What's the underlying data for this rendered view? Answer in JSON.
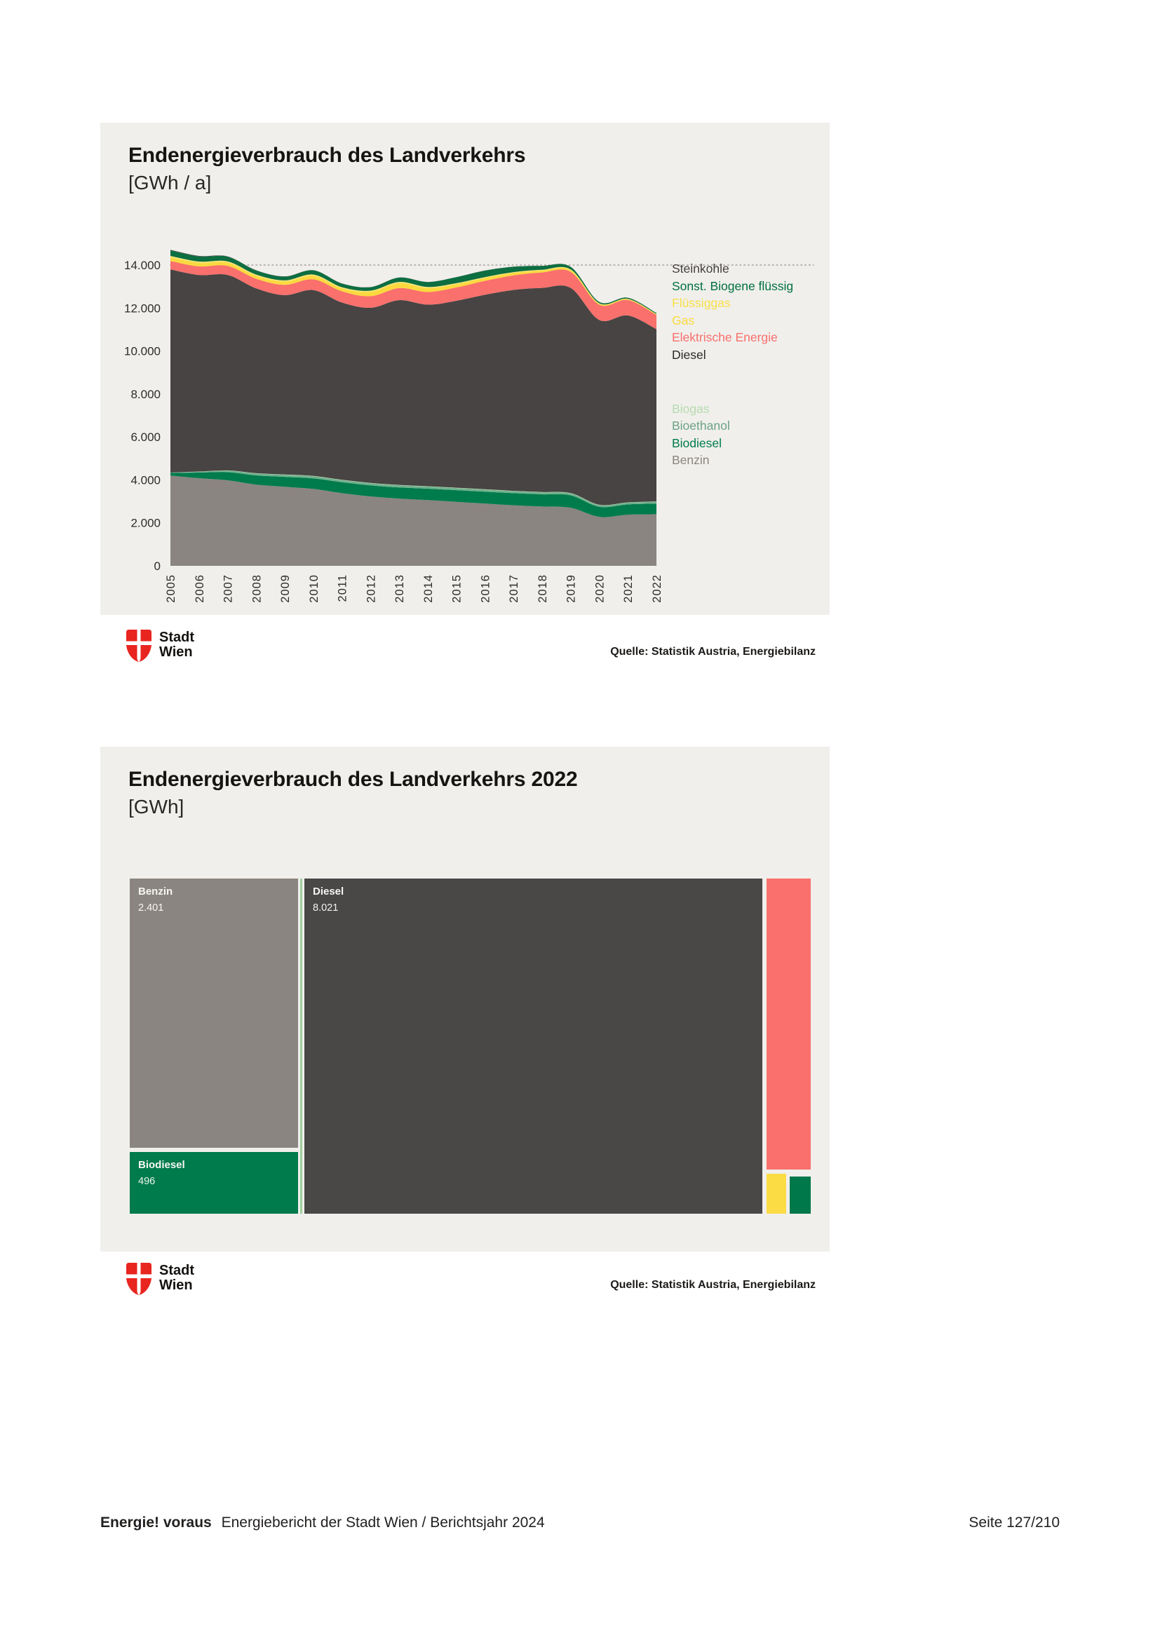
{
  "logo": {
    "line1": "Stadt",
    "line2": "Wien",
    "shield_red": "#e8251f"
  },
  "footer": {
    "brand": "Energie! voraus",
    "text": "Energiebericht der Stadt Wien / Berichtsjahr 2024",
    "page_label": "Seite 127/210"
  },
  "chart_data": [
    {
      "id": "endenergieverbrauch-landverkehr-verlauf",
      "type": "area",
      "stacked": true,
      "title": "Endenergieverbrauch des Landverkehrs",
      "unit_label": "[GWh / a]",
      "source": "Quelle: Statistik Austria, Energiebilanz",
      "x_years": [
        "2005",
        "2006",
        "2007",
        "2008",
        "2009",
        "2010",
        "2011",
        "2012",
        "2013",
        "2014",
        "2015",
        "2016",
        "2017",
        "2018",
        "2019",
        "2020",
        "2021",
        "2022"
      ],
      "ylim": [
        0,
        15100
      ],
      "yticks": [
        {
          "value": 0,
          "label": "0"
        },
        {
          "value": 2000,
          "label": "2.000"
        },
        {
          "value": 4000,
          "label": "4.000"
        },
        {
          "value": 6000,
          "label": "6.000"
        },
        {
          "value": 8000,
          "label": "8.000"
        },
        {
          "value": 10000,
          "label": "10.000"
        },
        {
          "value": 12000,
          "label": "12.000"
        },
        {
          "value": 14000,
          "label": "14.000"
        }
      ],
      "gridline": {
        "value": 14000,
        "style": "dotted",
        "color": "#a3a19d"
      },
      "legend_position": "right",
      "values_estimated_from_pixels": true,
      "series": [
        {
          "name": "Benzin",
          "color": "#8a8580",
          "values": [
            4200,
            4080,
            3980,
            3780,
            3680,
            3580,
            3380,
            3230,
            3130,
            3060,
            2980,
            2900,
            2820,
            2760,
            2700,
            2280,
            2380,
            2401
          ]
        },
        {
          "name": "Biodiesel",
          "color": "#007b4c",
          "values": [
            130,
            260,
            380,
            430,
            460,
            490,
            510,
            515,
            520,
            530,
            540,
            550,
            560,
            570,
            580,
            470,
            480,
            496
          ]
        },
        {
          "name": "Bioethanol",
          "color": "#6fb08c",
          "values": [
            10,
            40,
            70,
            90,
            95,
            100,
            100,
            100,
            100,
            100,
            100,
            100,
            95,
            90,
            90,
            80,
            80,
            80
          ]
        },
        {
          "name": "Biogas",
          "color": "#b9dcb2",
          "values": [
            5,
            8,
            10,
            12,
            15,
            15,
            15,
            15,
            15,
            15,
            15,
            15,
            15,
            15,
            15,
            12,
            12,
            15
          ]
        },
        {
          "name": "Diesel",
          "color": "#474443",
          "values": [
            9450,
            9150,
            9100,
            8600,
            8350,
            8650,
            8250,
            8150,
            8600,
            8450,
            8700,
            9050,
            9350,
            9500,
            9550,
            8600,
            8700,
            8021
          ]
        },
        {
          "name": "Elektrische Energie",
          "color": "#f9706c",
          "values": [
            390,
            400,
            420,
            450,
            480,
            500,
            520,
            540,
            560,
            590,
            620,
            650,
            680,
            720,
            750,
            710,
            720,
            660
          ]
        },
        {
          "name": "Gas",
          "color": "#fbd93e",
          "values": [
            170,
            160,
            150,
            140,
            150,
            160,
            140,
            200,
            230,
            180,
            150,
            130,
            110,
            90,
            80,
            50,
            40,
            40
          ]
        },
        {
          "name": "Flüssiggas",
          "color": "#f7e372",
          "values": [
            70,
            65,
            60,
            55,
            55,
            60,
            55,
            60,
            60,
            55,
            50,
            45,
            40,
            35,
            30,
            20,
            15,
            10
          ]
        },
        {
          "name": "Sonst. Biogene flüssig",
          "color": "#0c6e41",
          "values": [
            260,
            240,
            220,
            190,
            180,
            200,
            170,
            160,
            200,
            230,
            280,
            300,
            250,
            180,
            120,
            60,
            50,
            40
          ]
        },
        {
          "name": "Steinkohle",
          "color": "#474443",
          "values": [
            25,
            20,
            15,
            10,
            8,
            5,
            5,
            5,
            5,
            5,
            5,
            5,
            5,
            5,
            5,
            3,
            3,
            3
          ]
        }
      ],
      "legend_top": [
        {
          "label": "Steinkohle",
          "color": "#454140"
        },
        {
          "label": "Sonst. Biogene flüssig",
          "color": "#00703f"
        },
        {
          "label": "Flüssiggas",
          "color": "#f8e049"
        },
        {
          "label": "Gas",
          "color": "#fbd93e"
        },
        {
          "label": "Elektrische Energie",
          "color": "#f9706c"
        },
        {
          "label": "Diesel",
          "color": "#2c2928"
        }
      ],
      "legend_bottom": [
        {
          "label": "Biogas",
          "color": "#b7dbb0"
        },
        {
          "label": "Bioethanol",
          "color": "#6ba385"
        },
        {
          "label": "Biodiesel",
          "color": "#007b4c"
        },
        {
          "label": "Benzin",
          "color": "#8a8580"
        }
      ]
    },
    {
      "id": "endenergieverbrauch-landverkehr-2022-treemap",
      "type": "treemap",
      "title": "Endenergieverbrauch des Landverkehrs 2022",
      "unit_label": "[GWh]",
      "source": "Quelle: Statistik Austria, Energiebilanz",
      "tiles": [
        {
          "key": "benzin",
          "label": "Benzin",
          "value": 2401,
          "value_label": "2.401",
          "color": "#8a8580",
          "show_label": true
        },
        {
          "key": "biodiesel",
          "label": "Biodiesel",
          "value": 496,
          "value_label": "496",
          "color": "#007b4c",
          "show_label": true
        },
        {
          "key": "bioethanol",
          "label": "Bioethanol",
          "value": 80,
          "estimated": true,
          "color": "#9fd19a",
          "show_label": false
        },
        {
          "key": "diesel",
          "label": "Diesel",
          "value": 8021,
          "value_label": "8.021",
          "color": "#4a4747",
          "show_label": true
        },
        {
          "key": "elektrische-energie",
          "label": "Elektrische Energie",
          "value": 660,
          "estimated": true,
          "color": "#f9706c",
          "show_label": false
        },
        {
          "key": "gas",
          "label": "Gas",
          "value": 40,
          "estimated": true,
          "color": "#fbdc45",
          "show_label": false
        },
        {
          "key": "sonst-biogene-fluessig",
          "label": "Sonst. Biogene flüssig",
          "value": 41,
          "estimated": true,
          "color": "#00784a",
          "show_label": false
        }
      ]
    }
  ]
}
